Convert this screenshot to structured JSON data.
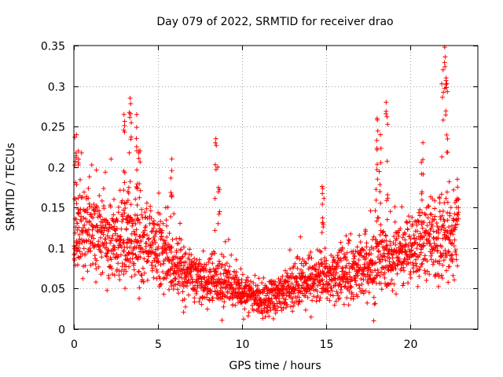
{
  "chart_data": {
    "type": "scatter",
    "title": "Day 079 of 2022, SRMTID for receiver drao",
    "xlabel": "GPS time / hours",
    "ylabel": "SRMTID / TECUs",
    "xlim": [
      0,
      24
    ],
    "ylim": [
      0,
      0.35
    ],
    "xticks": [
      0,
      5,
      10,
      15,
      20
    ],
    "xtick_labels": [
      "0",
      "5",
      "10",
      "15",
      "20"
    ],
    "yticks": [
      0,
      0.05,
      0.1,
      0.15,
      0.2,
      0.25,
      0.3,
      0.35
    ],
    "ytick_labels": [
      "0",
      "0.05",
      "0.1",
      "0.15",
      "0.2",
      "0.25",
      "0.3",
      "0.35"
    ],
    "grid": true,
    "marker": "+",
    "color": "#ff0000",
    "profile": {
      "description": "typical SRMTID level vs hour (data units), from visual estimate",
      "hours": [
        0,
        1,
        2,
        3,
        4,
        5,
        6,
        7,
        8,
        9,
        10,
        11,
        12,
        13,
        14,
        15,
        16,
        17,
        18,
        19,
        20,
        21,
        22,
        22.8
      ],
      "median": [
        0.13,
        0.12,
        0.11,
        0.11,
        0.11,
        0.1,
        0.08,
        0.065,
        0.06,
        0.055,
        0.045,
        0.04,
        0.04,
        0.055,
        0.06,
        0.065,
        0.07,
        0.075,
        0.08,
        0.09,
        0.1,
        0.11,
        0.11,
        0.11
      ],
      "spread": [
        0.04,
        0.035,
        0.035,
        0.035,
        0.035,
        0.03,
        0.025,
        0.02,
        0.02,
        0.02,
        0.015,
        0.015,
        0.015,
        0.02,
        0.02,
        0.02,
        0.022,
        0.025,
        0.03,
        0.03,
        0.03,
        0.035,
        0.035,
        0.035
      ],
      "step_hours": 0.01
    },
    "spikes": [
      {
        "x": 0.1,
        "y_min": 0.15,
        "y_max": 0.24
      },
      {
        "x": 0.3,
        "y_min": 0.14,
        "y_max": 0.22
      },
      {
        "x": 3.0,
        "y_min": 0.15,
        "y_max": 0.265
      },
      {
        "x": 3.2,
        "y_min": 0.13,
        "y_max": 0.17
      },
      {
        "x": 3.35,
        "y_min": 0.18,
        "y_max": 0.285
      },
      {
        "x": 3.75,
        "y_min": 0.15,
        "y_max": 0.265
      },
      {
        "x": 3.9,
        "y_min": 0.14,
        "y_max": 0.22
      },
      {
        "x": 5.8,
        "y_min": 0.15,
        "y_max": 0.21
      },
      {
        "x": 8.4,
        "y_min": 0.12,
        "y_max": 0.235
      },
      {
        "x": 8.6,
        "y_min": 0.13,
        "y_max": 0.2
      },
      {
        "x": 14.8,
        "y_min": 0.12,
        "y_max": 0.176
      },
      {
        "x": 18.0,
        "y_min": 0.15,
        "y_max": 0.26
      },
      {
        "x": 18.2,
        "y_min": 0.14,
        "y_max": 0.24
      },
      {
        "x": 18.6,
        "y_min": 0.15,
        "y_max": 0.28
      },
      {
        "x": 20.7,
        "y_min": 0.13,
        "y_max": 0.23
      },
      {
        "x": 21.9,
        "y_min": 0.2,
        "y_max": 0.32
      },
      {
        "x": 22.05,
        "y_min": 0.25,
        "y_max": 0.348
      },
      {
        "x": 22.15,
        "y_min": 0.2,
        "y_max": 0.31
      },
      {
        "x": 22.8,
        "y_min": 0.12,
        "y_max": 0.185
      }
    ],
    "seed": 79
  }
}
